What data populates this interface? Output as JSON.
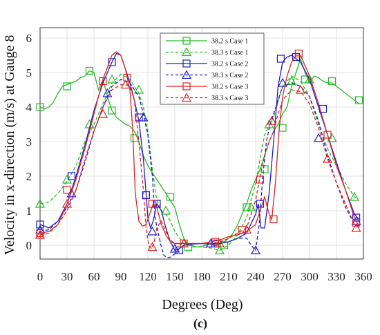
{
  "chart_data": {
    "type": "line",
    "title": "",
    "xlabel": "Degrees (Deg)",
    "ylabel": "Velocity in x-direction (m/s) at Gauge 8",
    "caption": "(c)",
    "xlim": [
      0,
      360
    ],
    "ylim": [
      -0.4,
      6.3
    ],
    "xticks": [
      "0",
      "30",
      "60",
      "90",
      "120",
      "150",
      "180",
      "210",
      "240",
      "270",
      "300",
      "330",
      "360"
    ],
    "yticks": [
      "0",
      "1",
      "2",
      "3",
      "4",
      "5",
      "6"
    ],
    "grid": true,
    "legend_position": "top-right",
    "series": [
      {
        "name": "38.2 s Case 1",
        "color": "#22bb22",
        "dash": "solid",
        "marker": "square",
        "x": [
          0,
          5,
          10,
          15,
          20,
          25,
          30,
          35,
          40,
          45,
          50,
          55,
          60,
          65,
          70,
          75,
          80,
          85,
          90,
          95,
          100,
          105,
          110,
          115,
          120,
          125,
          130,
          135,
          140,
          145,
          150,
          155,
          160,
          165,
          170,
          175,
          180,
          185,
          190,
          195,
          200,
          205,
          210,
          215,
          220,
          225,
          230,
          235,
          240,
          245,
          250,
          255,
          260,
          265,
          270,
          275,
          280,
          285,
          290,
          295,
          300,
          305,
          310,
          315,
          320,
          325,
          330,
          335,
          340,
          345,
          350,
          355
        ],
        "y": [
          4.0,
          3.95,
          4.0,
          4.15,
          4.4,
          4.6,
          4.65,
          4.7,
          4.75,
          4.85,
          4.9,
          5.05,
          5.0,
          4.5,
          4.8,
          4.3,
          3.9,
          3.7,
          3.6,
          3.5,
          3.45,
          3.3,
          3.0,
          2.6,
          2.3,
          2.1,
          1.9,
          1.7,
          1.5,
          1.3,
          1.1,
          0.6,
          0.2,
          0.0,
          -0.02,
          -0.05,
          -0.03,
          0.0,
          0.05,
          0.0,
          0.02,
          0.1,
          0.2,
          0.35,
          0.6,
          0.9,
          1.2,
          1.6,
          1.9,
          2.2,
          2.6,
          3.0,
          3.3,
          3.5,
          3.8,
          4.0,
          4.6,
          5.0,
          5.4,
          5.0,
          4.7,
          4.9,
          4.85,
          4.75,
          4.7,
          4.7,
          4.6,
          4.5,
          4.4,
          4.3,
          4.2,
          4.1
        ],
        "marker_x": [
          0,
          30,
          55,
          80,
          105,
          145,
          165,
          205,
          230,
          250,
          270,
          295,
          325,
          355
        ],
        "marker_y": [
          4.0,
          4.6,
          5.05,
          3.9,
          3.1,
          1.4,
          -0.05,
          0.0,
          1.1,
          2.2,
          3.4,
          4.8,
          4.75,
          4.2
        ]
      },
      {
        "name": "38.3 s Case 1",
        "color": "#22bb22",
        "dash": "dashed",
        "marker": "triangle",
        "x": [
          0,
          10,
          20,
          30,
          40,
          50,
          60,
          70,
          80,
          90,
          100,
          110,
          115,
          120,
          125,
          130,
          135,
          140,
          145,
          150,
          160,
          170,
          180,
          190,
          200,
          210,
          220,
          230,
          240,
          250,
          260,
          270,
          280,
          290,
          300,
          310,
          320,
          330,
          340,
          350,
          355
        ],
        "y": [
          1.2,
          1.25,
          1.5,
          1.85,
          2.3,
          3.0,
          3.5,
          4.1,
          4.7,
          4.95,
          4.8,
          4.4,
          4.0,
          3.3,
          2.2,
          1.3,
          1.0,
          0.9,
          0.7,
          0.4,
          0.05,
          -0.05,
          -0.05,
          -0.08,
          -0.15,
          0.0,
          0.3,
          0.8,
          1.8,
          3.2,
          3.7,
          4.6,
          4.9,
          4.75,
          4.3,
          3.5,
          2.8,
          2.3,
          1.8,
          1.4,
          1.3
        ],
        "marker_x": [
          0,
          30,
          55,
          80,
          110,
          140,
          200,
          235,
          255,
          280,
          300,
          325,
          350
        ],
        "marker_y": [
          1.2,
          1.9,
          3.5,
          4.8,
          4.5,
          1.0,
          -0.15,
          1.1,
          3.5,
          4.75,
          4.8,
          3.1,
          1.4
        ]
      },
      {
        "name": "38.2 s Case 2",
        "color": "#1a1acc",
        "dash": "solid",
        "marker": "square",
        "x": [
          0,
          10,
          20,
          30,
          40,
          50,
          60,
          70,
          80,
          85,
          90,
          95,
          100,
          105,
          110,
          115,
          118,
          120,
          123,
          126,
          130,
          135,
          140,
          145,
          150,
          155,
          160,
          170,
          180,
          190,
          200,
          210,
          220,
          230,
          240,
          243,
          246,
          250,
          255,
          260,
          265,
          270,
          275,
          280,
          285,
          290,
          300,
          310,
          320,
          330,
          340,
          350,
          355
        ],
        "y": [
          0.6,
          0.5,
          0.7,
          1.2,
          2.0,
          2.9,
          3.9,
          4.7,
          5.3,
          5.55,
          5.5,
          5.1,
          4.7,
          4.2,
          3.6,
          2.5,
          1.5,
          0.8,
          0.5,
          0.7,
          1.2,
          1.0,
          0.5,
          0.1,
          -0.15,
          -0.1,
          0.0,
          0.03,
          0.05,
          0.03,
          0.05,
          0.1,
          0.2,
          0.35,
          0.9,
          1.2,
          0.5,
          0.5,
          1.5,
          3.0,
          4.6,
          5.3,
          5.45,
          5.5,
          5.4,
          5.3,
          4.8,
          4.0,
          3.2,
          2.4,
          1.6,
          0.9,
          0.75
        ],
        "marker_x": [
          0,
          35,
          80,
          110,
          118,
          130,
          155,
          195,
          245,
          268,
          285,
          315,
          352
        ],
        "marker_y": [
          0.6,
          2.0,
          5.3,
          3.7,
          1.45,
          1.2,
          -0.15,
          0.05,
          1.2,
          5.4,
          5.45,
          3.95,
          0.8
        ]
      },
      {
        "name": "38.3 s Case 2",
        "color": "#1a1acc",
        "dash": "dashed",
        "marker": "triangle",
        "x": [
          0,
          10,
          20,
          30,
          40,
          50,
          60,
          70,
          80,
          90,
          100,
          110,
          115,
          120,
          125,
          128,
          132,
          135,
          138,
          141,
          145,
          150,
          155,
          160,
          170,
          180,
          190,
          200,
          210,
          220,
          230,
          235,
          240,
          244,
          248,
          252,
          256,
          260,
          270,
          280,
          290,
          300,
          310,
          320,
          330,
          340,
          350,
          355
        ],
        "y": [
          0.4,
          0.45,
          0.7,
          1.1,
          1.6,
          2.4,
          3.3,
          4.0,
          4.6,
          4.8,
          4.7,
          4.3,
          3.8,
          3.2,
          2.0,
          0.8,
          0.3,
          -0.05,
          -0.3,
          -0.35,
          -0.35,
          -0.25,
          -0.1,
          0.0,
          0.05,
          0.05,
          0.05,
          0.05,
          0.1,
          0.2,
          0.2,
          0.0,
          -0.15,
          0.6,
          2.0,
          3.0,
          3.5,
          3.8,
          4.6,
          4.7,
          4.6,
          4.3,
          3.6,
          2.6,
          1.8,
          1.1,
          0.6,
          0.55
        ],
        "marker_x": [
          0,
          35,
          75,
          115,
          125,
          150,
          190,
          240,
          270,
          310,
          352
        ],
        "marker_y": [
          0.45,
          1.5,
          4.4,
          3.7,
          0.4,
          -0.1,
          0.05,
          -0.15,
          4.7,
          3.1,
          0.7
        ]
      },
      {
        "name": "38.2 s Case 3",
        "color": "#e02020",
        "dash": "solid",
        "marker": "square",
        "x": [
          0,
          10,
          20,
          30,
          40,
          50,
          60,
          70,
          80,
          85,
          90,
          95,
          100,
          103,
          106,
          110,
          114,
          118,
          122,
          126,
          130,
          135,
          140,
          145,
          150,
          160,
          170,
          180,
          190,
          200,
          210,
          220,
          230,
          240,
          245,
          250,
          255,
          258,
          262,
          266,
          270,
          275,
          280,
          285,
          290,
          300,
          310,
          320,
          330,
          340,
          350,
          355
        ],
        "y": [
          0.35,
          0.4,
          0.6,
          1.2,
          1.9,
          2.8,
          3.8,
          4.8,
          5.5,
          5.6,
          5.5,
          5.1,
          4.5,
          3.4,
          1.5,
          0.7,
          0.55,
          0.6,
          0.9,
          1.2,
          1.1,
          0.6,
          0.3,
          0.1,
          0.05,
          0.05,
          0.05,
          0.05,
          0.1,
          0.15,
          0.25,
          0.3,
          0.4,
          0.6,
          1.0,
          1.4,
          0.9,
          0.75,
          1.8,
          3.3,
          4.3,
          4.9,
          5.3,
          5.5,
          5.5,
          4.9,
          4.1,
          3.2,
          2.3,
          1.6,
          0.8,
          0.55
        ],
        "marker_x": [
          0,
          30,
          70,
          97,
          125,
          160,
          195,
          225,
          245,
          260,
          288,
          320,
          352
        ],
        "marker_y": [
          0.35,
          1.6,
          4.75,
          4.85,
          1.2,
          0.05,
          0.1,
          0.45,
          1.9,
          0.75,
          5.55,
          3.2,
          0.65
        ]
      },
      {
        "name": "38.3 s Case 3",
        "color": "#e02020",
        "dash": "dashed",
        "marker": "triangle",
        "x": [
          0,
          10,
          20,
          30,
          40,
          50,
          60,
          70,
          80,
          90,
          95,
          100,
          105,
          110,
          115,
          118,
          121,
          124,
          127,
          130,
          135,
          140,
          145,
          150,
          160,
          170,
          180,
          190,
          200,
          210,
          220,
          230,
          240,
          245,
          250,
          255,
          260,
          265,
          270,
          280,
          290,
          300,
          310,
          320,
          330,
          340,
          350,
          355
        ],
        "y": [
          0.3,
          0.35,
          0.6,
          1.0,
          1.6,
          2.5,
          3.3,
          4.0,
          4.5,
          4.65,
          4.65,
          4.6,
          4.2,
          3.0,
          1.6,
          0.5,
          0.0,
          -0.1,
          0.1,
          0.5,
          0.7,
          0.4,
          0.15,
          0.05,
          0.05,
          0.05,
          0.05,
          0.05,
          0.1,
          0.2,
          0.35,
          0.5,
          1.3,
          2.0,
          2.6,
          3.0,
          3.3,
          3.8,
          4.2,
          4.5,
          4.45,
          4.1,
          3.4,
          2.5,
          1.8,
          1.2,
          0.6,
          0.5
        ],
        "marker_x": [
          0,
          30,
          70,
          95,
          125,
          160,
          200,
          230,
          258,
          290,
          320,
          352
        ],
        "marker_y": [
          0.3,
          1.2,
          3.8,
          4.65,
          -0.05,
          0.05,
          0.05,
          0.45,
          3.6,
          4.5,
          2.5,
          0.5
        ]
      }
    ]
  }
}
